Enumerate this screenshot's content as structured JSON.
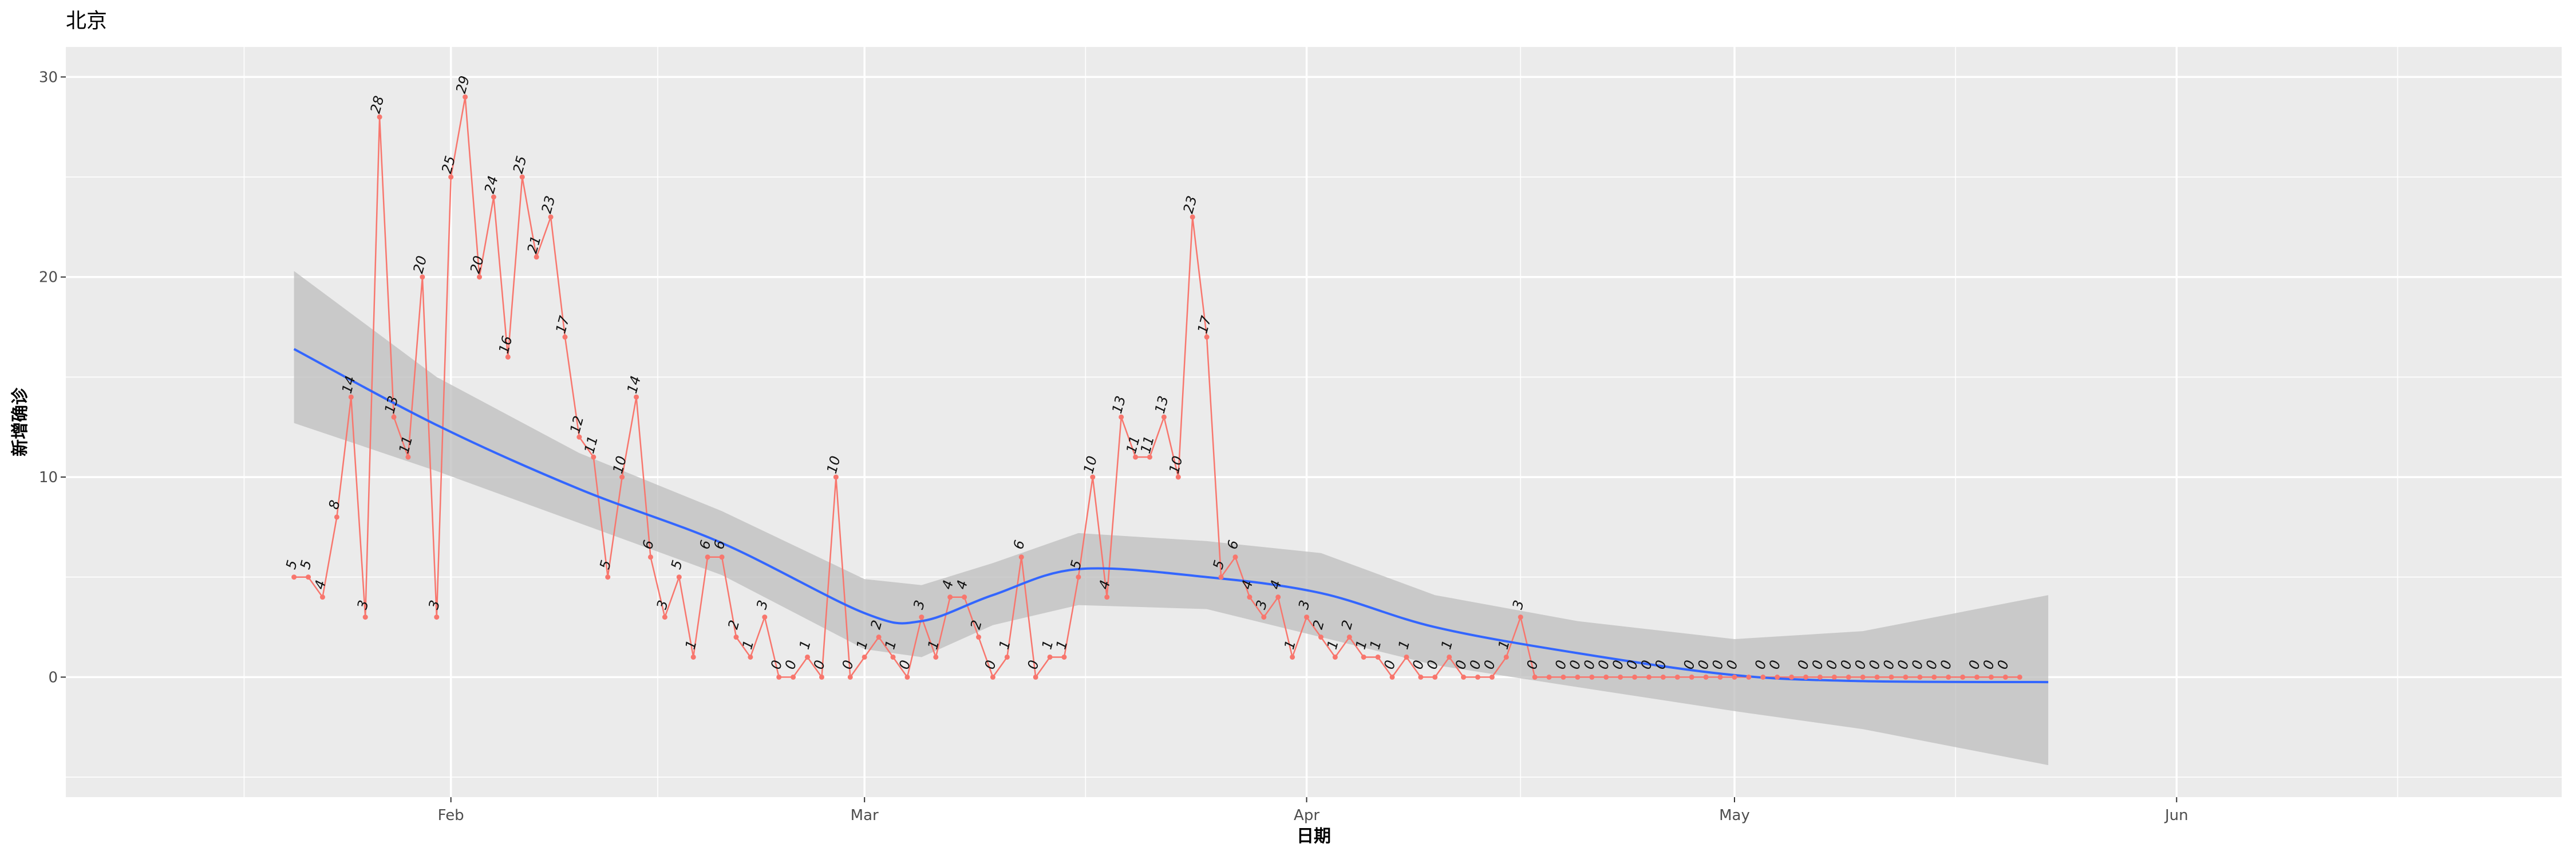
{
  "chart_data": {
    "type": "line",
    "title": "北京",
    "xlabel": "日期",
    "ylabel": "新增确诊",
    "x_range": [
      "2020-01-05",
      "2020-06-28"
    ],
    "ylim": [
      -6,
      31.5
    ],
    "x_ticks": [
      {
        "date": "2020-02-01",
        "label": "Feb"
      },
      {
        "date": "2020-03-01",
        "label": "Mar"
      },
      {
        "date": "2020-04-01",
        "label": "Apr"
      },
      {
        "date": "2020-05-01",
        "label": "May"
      },
      {
        "date": "2020-06-01",
        "label": "Jun"
      }
    ],
    "y_ticks": [
      0,
      10,
      20,
      30
    ],
    "grid": true,
    "colors": {
      "panel": "#ebebeb",
      "grid": "#ffffff",
      "series": "#f8766d",
      "smooth": "#3366ff",
      "band": "#bdbdbd"
    },
    "start_date": "2020-01-21",
    "values": [
      5,
      5,
      4,
      8,
      14,
      3,
      28,
      13,
      11,
      20,
      3,
      25,
      29,
      20,
      24,
      16,
      25,
      21,
      23,
      17,
      12,
      11,
      5,
      10,
      14,
      6,
      3,
      5,
      1,
      6,
      6,
      2,
      1,
      3,
      0,
      0,
      1,
      0,
      10,
      0,
      1,
      2,
      1,
      0,
      3,
      1,
      4,
      4,
      2,
      0,
      1,
      6,
      0,
      1,
      1,
      5,
      10,
      4,
      13,
      11,
      11,
      13,
      10,
      23,
      17,
      5,
      6,
      4,
      3,
      4,
      1,
      3,
      2,
      1,
      2,
      1,
      1,
      0,
      1,
      0,
      0,
      1,
      0,
      0,
      0,
      1,
      3,
      0,
      0,
      0,
      0,
      0,
      0,
      0,
      0,
      0,
      0,
      0,
      0,
      0,
      0,
      0,
      0,
      0,
      0,
      0,
      0,
      0,
      0,
      0,
      0,
      0,
      0,
      0,
      0,
      0,
      0,
      0,
      0,
      0,
      0,
      0
    ],
    "labeled_dates": [
      "2020-01-21",
      "2020-01-22",
      "2020-01-23",
      "2020-01-24",
      "2020-01-25",
      "2020-01-26",
      "2020-01-27",
      "2020-01-28",
      "2020-01-29",
      "2020-01-30",
      "2020-01-31",
      "2020-02-01",
      "2020-02-02",
      "2020-02-03",
      "2020-02-04",
      "2020-02-05",
      "2020-02-06",
      "2020-02-07",
      "2020-02-08",
      "2020-02-09",
      "2020-02-10",
      "2020-02-11",
      "2020-02-12",
      "2020-02-13",
      "2020-02-14",
      "2020-02-15",
      "2020-02-16",
      "2020-02-17",
      "2020-02-18",
      "2020-02-19",
      "2020-02-20",
      "2020-02-21",
      "2020-02-22",
      "2020-02-23",
      "2020-02-24",
      "2020-02-25",
      "2020-02-26",
      "2020-02-27",
      "2020-02-28",
      "2020-02-29",
      "2020-03-01",
      "2020-03-02",
      "2020-03-03",
      "2020-03-04",
      "2020-03-05",
      "2020-03-06",
      "2020-03-07",
      "2020-03-08",
      "2020-03-09",
      "2020-03-10",
      "2020-03-11",
      "2020-03-12",
      "2020-03-13",
      "2020-03-14",
      "2020-03-15",
      "2020-03-16",
      "2020-03-17",
      "2020-03-18",
      "2020-03-19",
      "2020-03-20",
      "2020-03-21",
      "2020-03-22",
      "2020-03-23",
      "2020-03-24",
      "2020-03-25",
      "2020-03-26",
      "2020-03-27",
      "2020-03-28",
      "2020-03-29",
      "2020-03-30",
      "2020-03-31",
      "2020-04-01",
      "2020-04-02",
      "2020-04-03",
      "2020-04-04",
      "2020-04-05",
      "2020-04-06",
      "2020-04-07",
      "2020-04-08",
      "2020-04-09",
      "2020-04-10",
      "2020-04-11",
      "2020-04-12",
      "2020-04-13",
      "2020-04-14",
      "2020-04-15",
      "2020-04-16",
      "2020-04-17",
      "2020-04-19",
      "2020-04-20",
      "2020-04-21",
      "2020-04-22",
      "2020-04-23",
      "2020-04-24",
      "2020-04-25",
      "2020-04-26",
      "2020-04-28",
      "2020-04-29",
      "2020-04-30",
      "2020-05-01",
      "2020-05-03",
      "2020-05-04",
      "2020-05-06",
      "2020-05-07",
      "2020-05-08",
      "2020-05-09",
      "2020-05-10",
      "2020-05-11",
      "2020-05-12",
      "2020-05-13",
      "2020-05-14",
      "2020-05-15",
      "2020-05-16",
      "2020-05-18",
      "2020-05-19",
      "2020-05-20",
      "2020-05-23"
    ],
    "smooth": {
      "name": "loess",
      "x": [
        "2020-01-21",
        "2020-01-31",
        "2020-02-10",
        "2020-02-20",
        "2020-03-01",
        "2020-03-05",
        "2020-03-10",
        "2020-03-16",
        "2020-03-25",
        "2020-04-02",
        "2020-04-10",
        "2020-04-20",
        "2020-05-01",
        "2020-05-10",
        "2020-05-23"
      ],
      "y": [
        16.4,
        12.6,
        9.4,
        6.7,
        3.2,
        2.8,
        4.1,
        5.4,
        5.0,
        4.2,
        2.5,
        1.2,
        0.1,
        -0.2,
        -0.25
      ],
      "lower": [
        12.7,
        10.3,
        7.7,
        5.1,
        1.4,
        1.0,
        2.6,
        3.6,
        3.4,
        2.0,
        0.6,
        -0.5,
        -1.7,
        -2.6,
        -4.4
      ],
      "upper": [
        20.3,
        15.0,
        11.2,
        8.3,
        4.9,
        4.6,
        5.7,
        7.2,
        6.8,
        6.2,
        4.1,
        2.8,
        1.9,
        2.3,
        4.1
      ]
    }
  }
}
